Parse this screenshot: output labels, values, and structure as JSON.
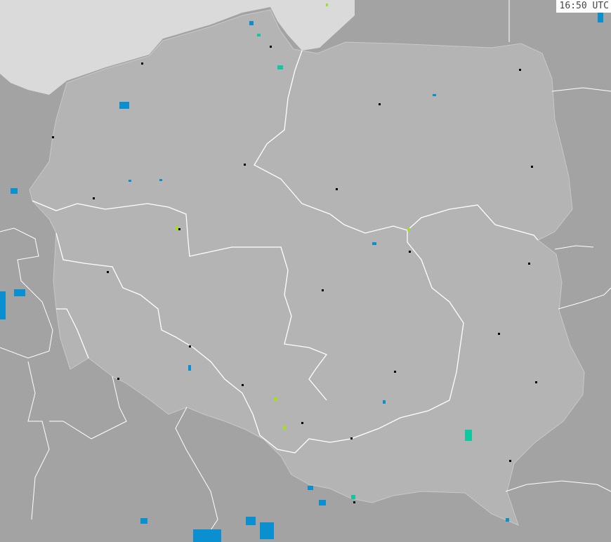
{
  "timestamp": "16:50 UTC",
  "colors": {
    "sea": "#dadada",
    "poland": "#b4b4b4",
    "neighbors": "#a3a3a3",
    "borders": "#ffffff",
    "cities": "#000000",
    "radar_low": "#0a8fd0",
    "radar_mid": "#10c8a0",
    "radar_high": "#a0e020"
  }
}
